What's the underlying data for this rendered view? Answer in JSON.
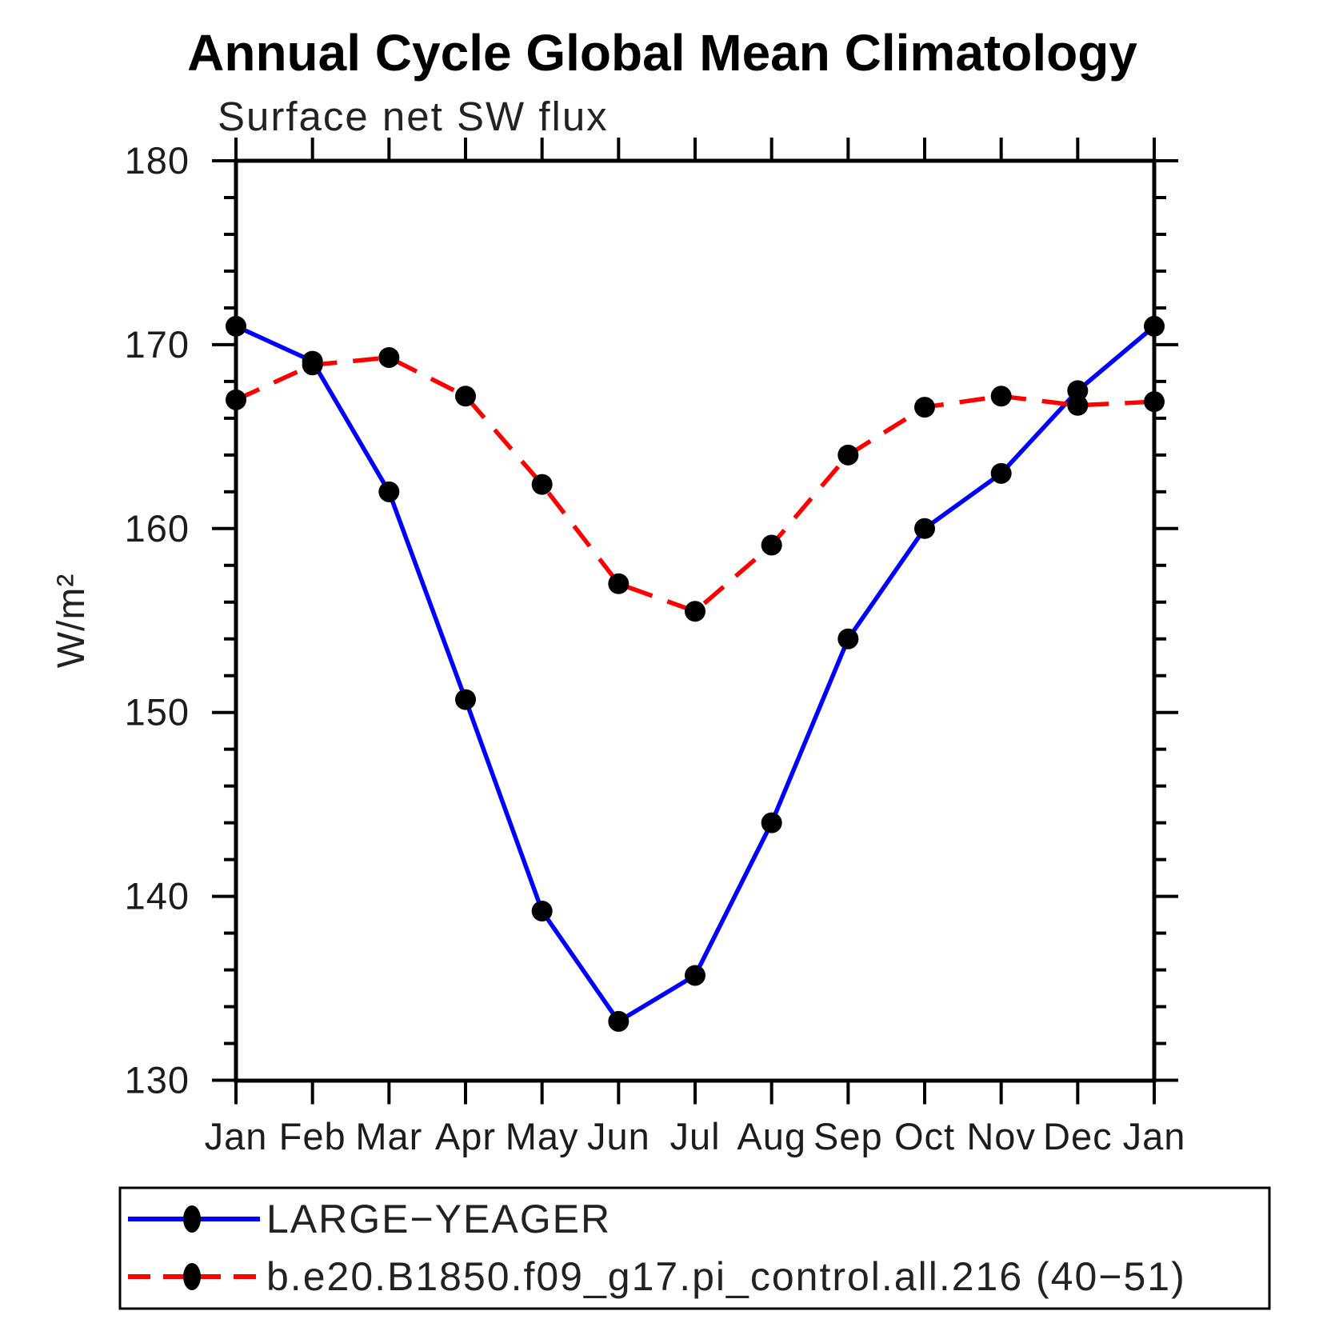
{
  "title": "Annual Cycle Global Mean Climatology",
  "subtitle": "Surface net SW flux",
  "ylabel": "W/m²",
  "legend": {
    "entries": [
      {
        "label": "LARGE−YEAGER"
      },
      {
        "label": "b.e20.B1850.f09_g17.pi_control.all.216 (40−51)"
      }
    ]
  },
  "chart_data": {
    "type": "line",
    "title": "Annual Cycle Global Mean Climatology",
    "subtitle": "Surface net SW flux",
    "xlabel": "",
    "ylabel": "W/m²",
    "x_categories": [
      "Jan",
      "Feb",
      "Mar",
      "Apr",
      "May",
      "Jun",
      "Jul",
      "Aug",
      "Sep",
      "Oct",
      "Nov",
      "Dec",
      "Jan"
    ],
    "ylim": [
      130,
      180
    ],
    "ytick_major": [
      130,
      140,
      150,
      160,
      170,
      180
    ],
    "ytick_minor_step": 2,
    "grid": false,
    "legend_position": "bottom-left-box",
    "marker": "filled-circle",
    "marker_color": "#000000",
    "series": [
      {
        "name": "LARGE−YEAGER",
        "color": "#0000ff",
        "style": "solid",
        "values": [
          171.0,
          169.1,
          162.0,
          150.7,
          139.2,
          133.2,
          135.7,
          144.0,
          154.0,
          160.0,
          163.0,
          167.5,
          171.0
        ]
      },
      {
        "name": "b.e20.B1850.f09_g17.pi_control.all.216 (40−51)",
        "color": "#ff0000",
        "style": "dashed",
        "values": [
          167.0,
          168.9,
          169.3,
          167.2,
          162.4,
          157.0,
          155.5,
          159.1,
          164.0,
          166.6,
          167.2,
          166.7,
          166.9
        ]
      }
    ]
  }
}
